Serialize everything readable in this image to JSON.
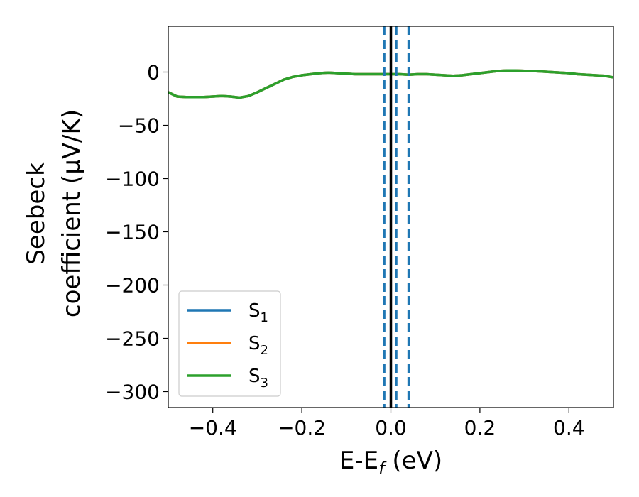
{
  "chart_data": {
    "type": "line",
    "xlabel_main": "E-E",
    "xlabel_sub": "f",
    "xlabel_unit": " (eV)",
    "ylabel_line1": "Seebeck",
    "ylabel_line2": "coefficient  (μV/K)",
    "xlim": [
      -0.5,
      0.5
    ],
    "ylim": [
      -315,
      43
    ],
    "xticks": [
      -0.4,
      -0.2,
      0.0,
      0.2,
      0.4
    ],
    "xtick_labels": [
      "−0.4",
      "−0.2",
      "0.0",
      "0.2",
      "0.4"
    ],
    "yticks": [
      0,
      -50,
      -100,
      -150,
      -200,
      -250,
      -300
    ],
    "ytick_labels": [
      "0",
      "−50",
      "−100",
      "−150",
      "−200",
      "−250",
      "−300"
    ],
    "grid": false,
    "legend_placement": "lower-left",
    "series": [
      {
        "name": "S",
        "sub": "1",
        "color": "#1f77b4",
        "x": [
          -0.5,
          -0.48,
          -0.46,
          -0.44,
          -0.42,
          -0.4,
          -0.38,
          -0.36,
          -0.34,
          -0.32,
          -0.3,
          -0.28,
          -0.26,
          -0.24,
          -0.22,
          -0.2,
          -0.18,
          -0.16,
          -0.14,
          -0.12,
          -0.1,
          -0.08,
          -0.06,
          -0.04,
          -0.02,
          0.0,
          0.02,
          0.04,
          0.06,
          0.08,
          0.1,
          0.12,
          0.14,
          0.16,
          0.18,
          0.2,
          0.22,
          0.24,
          0.26,
          0.28,
          0.3,
          0.32,
          0.34,
          0.36,
          0.38,
          0.4,
          0.42,
          0.44,
          0.46,
          0.48,
          0.5
        ],
        "values": [
          -19,
          -23,
          -23.5,
          -23.5,
          -23.5,
          -23,
          -22.5,
          -23,
          -24,
          -22.5,
          -19,
          -15,
          -11,
          -7,
          -4.5,
          -3,
          -2,
          -1,
          -0.5,
          -1,
          -1.5,
          -2,
          -2,
          -2,
          -2,
          -2,
          -2,
          -2.5,
          -2,
          -2,
          -2.5,
          -3,
          -3.5,
          -3,
          -2,
          -1,
          0,
          1,
          1.5,
          1.5,
          1.2,
          1,
          0.5,
          0,
          -0.5,
          -1,
          -2,
          -2.5,
          -3,
          -3.5,
          -5
        ]
      },
      {
        "name": "S",
        "sub": "2",
        "color": "#ff7f0e",
        "x": [
          -0.5,
          -0.48,
          -0.46,
          -0.44,
          -0.42,
          -0.4,
          -0.38,
          -0.36,
          -0.34,
          -0.32,
          -0.3,
          -0.28,
          -0.26,
          -0.24,
          -0.22,
          -0.2,
          -0.18,
          -0.16,
          -0.14,
          -0.12,
          -0.1,
          -0.08,
          -0.06,
          -0.04,
          -0.02,
          0.0,
          0.02,
          0.04,
          0.06,
          0.08,
          0.1,
          0.12,
          0.14,
          0.16,
          0.18,
          0.2,
          0.22,
          0.24,
          0.26,
          0.28,
          0.3,
          0.32,
          0.34,
          0.36,
          0.38,
          0.4,
          0.42,
          0.44,
          0.46,
          0.48,
          0.5
        ],
        "values": [
          -19,
          -23,
          -23.5,
          -23.5,
          -23.5,
          -23,
          -22.5,
          -23,
          -24,
          -22.5,
          -19,
          -15,
          -11,
          -7,
          -4.5,
          -3,
          -2,
          -1,
          -0.5,
          -1,
          -1.5,
          -2,
          -2,
          -2,
          -2,
          -2,
          -2,
          -2.5,
          -2,
          -2,
          -2.5,
          -3,
          -3.5,
          -3,
          -2,
          -1,
          0,
          1,
          1.5,
          1.5,
          1.2,
          1,
          0.5,
          0,
          -0.5,
          -1,
          -2,
          -2.5,
          -3,
          -3.5,
          -5
        ]
      },
      {
        "name": "S",
        "sub": "3",
        "color": "#2ca02c",
        "x": [
          -0.5,
          -0.48,
          -0.46,
          -0.44,
          -0.42,
          -0.4,
          -0.38,
          -0.36,
          -0.34,
          -0.32,
          -0.3,
          -0.28,
          -0.26,
          -0.24,
          -0.22,
          -0.2,
          -0.18,
          -0.16,
          -0.14,
          -0.12,
          -0.1,
          -0.08,
          -0.06,
          -0.04,
          -0.02,
          0.0,
          0.02,
          0.04,
          0.06,
          0.08,
          0.1,
          0.12,
          0.14,
          0.16,
          0.18,
          0.2,
          0.22,
          0.24,
          0.26,
          0.28,
          0.3,
          0.32,
          0.34,
          0.36,
          0.38,
          0.4,
          0.42,
          0.44,
          0.46,
          0.48,
          0.5
        ],
        "values": [
          -19,
          -23,
          -23.5,
          -23.5,
          -23.5,
          -23,
          -22.5,
          -23,
          -24,
          -22.5,
          -19,
          -15,
          -11,
          -7,
          -4.5,
          -3,
          -2,
          -1,
          -0.5,
          -1,
          -1.5,
          -2,
          -2,
          -2,
          -2,
          -2,
          -2,
          -2.5,
          -2,
          -2,
          -2.5,
          -3,
          -3.5,
          -3,
          -2,
          -1,
          0,
          1,
          1.5,
          1.5,
          1.2,
          1,
          0.5,
          0,
          -0.5,
          -1,
          -2,
          -2.5,
          -3,
          -3.5,
          -5
        ]
      }
    ],
    "vertical_lines": [
      {
        "x": 0.0,
        "style": "solid",
        "color": "#000000"
      },
      {
        "x": -0.015,
        "style": "dashed",
        "color": "#1f77b4"
      },
      {
        "x": 0.012,
        "style": "dashed",
        "color": "#1f77b4"
      },
      {
        "x": 0.04,
        "style": "dashed",
        "color": "#1f77b4"
      }
    ]
  }
}
